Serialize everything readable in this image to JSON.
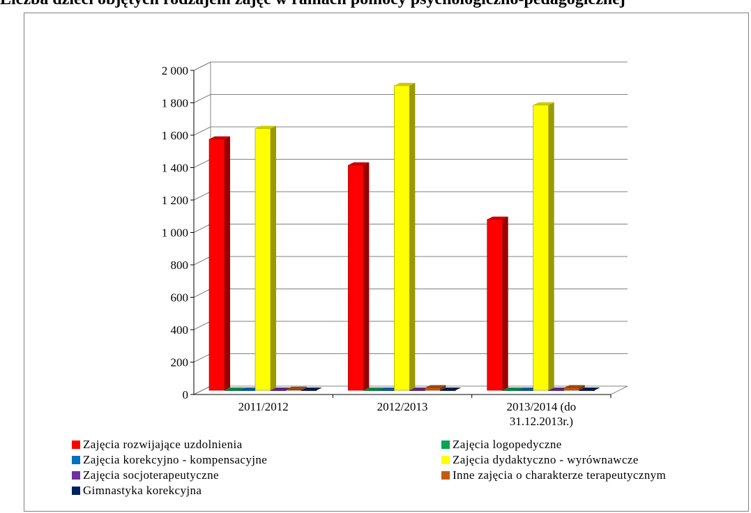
{
  "title": "Liczba dzieci objętych rodzajem zajęć w ramach pomocy psychologiczno-pedagogicznej",
  "colors": {
    "series": [
      "#ff0000",
      "#00a651",
      "#0070c0",
      "#ffff00",
      "#7030a0",
      "#c55a11",
      "#002060"
    ],
    "grid": "#808080",
    "wall": "#ffffff"
  },
  "chart_data": {
    "type": "bar",
    "style": "3d-clustered",
    "categories": [
      "2011/2012",
      "2012/2013",
      "2013/2014 (do 31.12.2013r.)"
    ],
    "category_lines": [
      [
        "2011/2012"
      ],
      [
        "2012/2013"
      ],
      [
        "2013/2014 (do",
        "31.12.2013r.)"
      ]
    ],
    "series": [
      {
        "name": "Zajęcia rozwijające uzdolnienia",
        "values": [
          1550,
          1390,
          1055
        ]
      },
      {
        "name": "Zajęcia logopedyczne",
        "values": [
          0,
          0,
          0
        ]
      },
      {
        "name": "Zajęcia korekcyjno - kompensacyjne",
        "values": [
          0,
          0,
          0
        ]
      },
      {
        "name": "Zajęcia dydaktyczno - wyrównawcze",
        "values": [
          1615,
          1880,
          1760
        ]
      },
      {
        "name": "Zajęcia socjoterapeutyczne",
        "values": [
          0,
          0,
          0
        ]
      },
      {
        "name": "Inne zajęcia o charakterze terapeutycznym",
        "values": [
          5,
          15,
          15
        ]
      },
      {
        "name": "Gimnastyka korekcyjna",
        "values": [
          0,
          0,
          0
        ]
      }
    ],
    "ylim": [
      0,
      2000
    ],
    "yticks": [
      0,
      200,
      400,
      600,
      800,
      1000,
      1200,
      1400,
      1600,
      1800,
      2000
    ],
    "ytick_labels": [
      "0",
      "200",
      "400",
      "600",
      "800",
      "1 000",
      "1 200",
      "1 400",
      "1 600",
      "1 800",
      "2 000"
    ],
    "grid": true,
    "legend_position": "bottom"
  }
}
